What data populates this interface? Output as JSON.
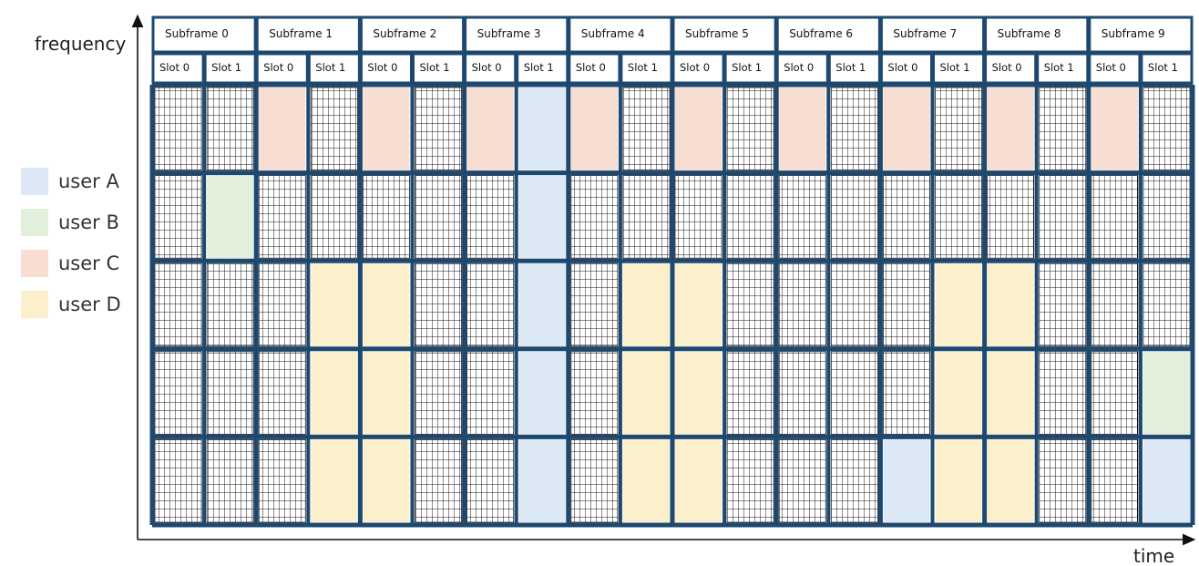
{
  "axes": {
    "y_label": "frequency",
    "x_label": "time"
  },
  "legend": [
    {
      "label": "user A",
      "color": "#dce8f5"
    },
    {
      "label": "user B",
      "color": "#e2efdb"
    },
    {
      "label": "user C",
      "color": "#f7ddd2"
    },
    {
      "label": "user D",
      "color": "#fcefcc"
    }
  ],
  "colors": {
    "frame": "#1d4870",
    "grid": "#111111",
    "empty": "#ffffff"
  },
  "subframes": [
    "Subframe 0",
    "Subframe 1",
    "Subframe 2",
    "Subframe 3",
    "Subframe 4",
    "Subframe 5",
    "Subframe 6",
    "Subframe 7",
    "Subframe 8",
    "Subframe 9"
  ],
  "slot_labels": [
    "Slot 0",
    "Slot 1"
  ],
  "allocation": [
    [
      null,
      null,
      "C",
      null,
      "C",
      null,
      "C",
      "A",
      "C",
      null,
      "C",
      null,
      "C",
      null,
      "C",
      null,
      "C",
      null,
      "C",
      null
    ],
    [
      null,
      "B",
      null,
      null,
      null,
      null,
      null,
      "A",
      null,
      null,
      null,
      null,
      null,
      null,
      null,
      null,
      null,
      null,
      null,
      null
    ],
    [
      null,
      null,
      null,
      "D",
      "D",
      null,
      null,
      "A",
      null,
      "D",
      "D",
      null,
      null,
      null,
      null,
      "D",
      "D",
      null,
      null,
      null
    ],
    [
      null,
      null,
      null,
      "D",
      "D",
      null,
      null,
      "A",
      null,
      "D",
      "D",
      null,
      null,
      null,
      null,
      "D",
      "D",
      null,
      null,
      "B"
    ],
    [
      null,
      null,
      null,
      "D",
      "D",
      null,
      null,
      "A",
      null,
      "D",
      "D",
      null,
      null,
      null,
      "A",
      "D",
      "D",
      null,
      null,
      "A"
    ]
  ]
}
